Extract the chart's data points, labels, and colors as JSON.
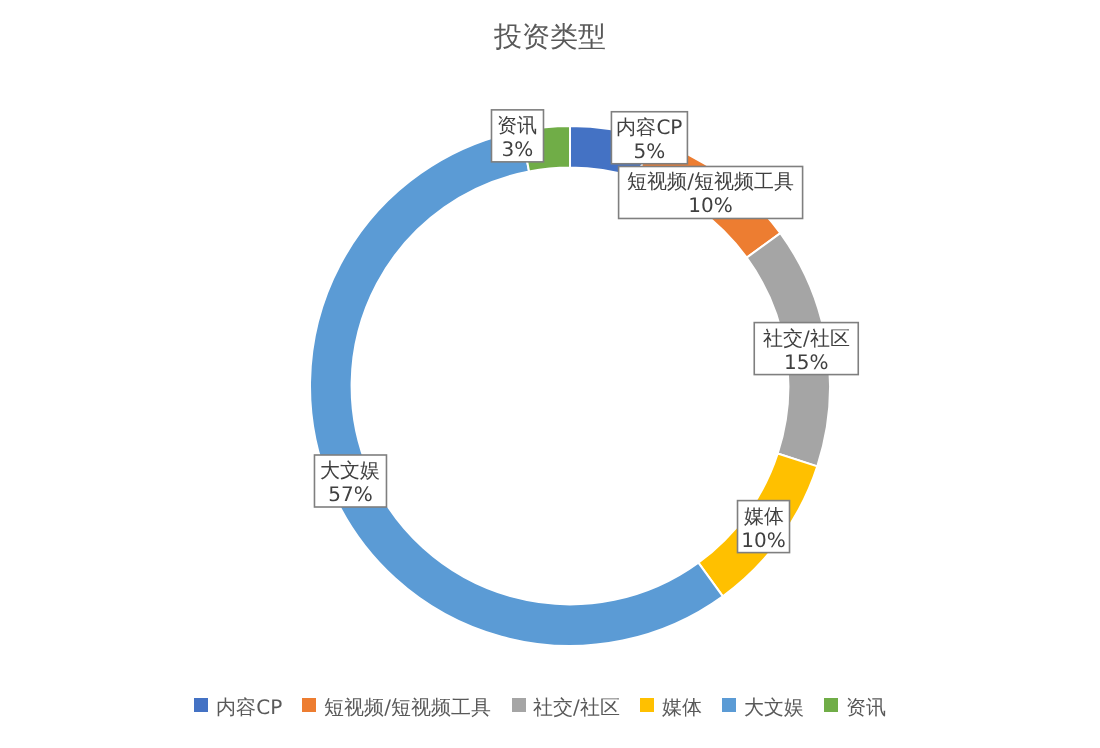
{
  "chart_data": {
    "type": "donut",
    "title": "投资类型",
    "categories": [
      "内容CP",
      "短视频/短视频工具",
      "社交/社区",
      "媒体",
      "大文娱",
      "资讯"
    ],
    "values": [
      5,
      10,
      15,
      10,
      57,
      3
    ],
    "value_labels": [
      "5%",
      "10%",
      "15%",
      "10%",
      "57%",
      "3%"
    ],
    "colors": [
      "#4472c4",
      "#ed7d31",
      "#a5a5a5",
      "#ffc000",
      "#5b9bd5",
      "#70ad47"
    ],
    "legend": "bottom"
  }
}
